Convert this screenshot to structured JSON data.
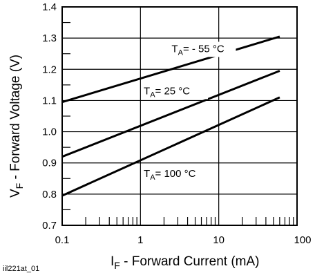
{
  "chart_data": {
    "type": "line",
    "x_scale": "log",
    "xlim": [
      0.1,
      100
    ],
    "ylim": [
      0.7,
      1.4
    ],
    "grid": true,
    "legend": "inline",
    "x_ticks": [
      {
        "value": 0.1,
        "label": "0.1"
      },
      {
        "value": 1,
        "label": "1"
      },
      {
        "value": 10,
        "label": "10"
      },
      {
        "value": 100,
        "label": "100"
      }
    ],
    "y_ticks": [
      {
        "value": 0.7,
        "label": "0.7"
      },
      {
        "value": 0.8,
        "label": "0.8"
      },
      {
        "value": 0.9,
        "label": "0.9"
      },
      {
        "value": 1.0,
        "label": "1.0"
      },
      {
        "value": 1.1,
        "label": "1.1"
      },
      {
        "value": 1.2,
        "label": "1.2"
      },
      {
        "value": 1.3,
        "label": "1.3"
      },
      {
        "value": 1.4,
        "label": "1.4"
      }
    ],
    "xlabel": {
      "main": "I",
      "sub": "F",
      "rest": " - Forward Current (mA)"
    },
    "ylabel": {
      "main": "V",
      "sub": "F",
      "rest": " - Forward Voltage (V)"
    },
    "series": [
      {
        "label_main": "T",
        "label_sub": "A",
        "label_rest": "= - 55 °C",
        "x": [
          0.1,
          60
        ],
        "y": [
          1.095,
          1.305
        ]
      },
      {
        "label_main": "T",
        "label_sub": "A",
        "label_rest": "= 25 °C",
        "x": [
          0.1,
          60
        ],
        "y": [
          0.92,
          1.195
        ]
      },
      {
        "label_main": "T",
        "label_sub": "A",
        "label_rest": "= 100 °C",
        "x": [
          0.1,
          60
        ],
        "y": [
          0.795,
          1.11
        ]
      }
    ],
    "figure_id": "iil221at_01"
  },
  "colors": {
    "line": "#000000",
    "background": "#ffffff"
  }
}
